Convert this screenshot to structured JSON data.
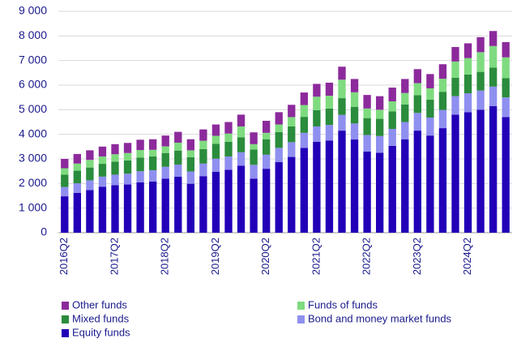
{
  "chart_data": {
    "type": "stacked_bar",
    "categories": [
      "2016Q2",
      null,
      null,
      null,
      "2017Q2",
      null,
      null,
      null,
      "2018Q2",
      null,
      null,
      null,
      "2019Q2",
      null,
      null,
      null,
      "2020Q2",
      null,
      null,
      null,
      "2021Q2",
      null,
      null,
      null,
      "2022Q2",
      null,
      null,
      null,
      "2023Q2",
      null,
      null,
      null,
      "2024Q2",
      null,
      null,
      null
    ],
    "series": [
      {
        "name": "Equity funds",
        "color": "#2200b8",
        "values": [
          1480,
          1620,
          1730,
          1870,
          1930,
          1960,
          2050,
          2080,
          2200,
          2280,
          1990,
          2300,
          2480,
          2560,
          2720,
          2200,
          2600,
          2870,
          3080,
          3450,
          3700,
          3750,
          4150,
          3790,
          3300,
          3250,
          3530,
          3800,
          4150,
          3950,
          4250,
          4800,
          4900,
          5000,
          5150,
          4700
        ]
      },
      {
        "name": "Bond and money market funds",
        "color": "#8f8ff0",
        "values": [
          380,
          390,
          400,
          410,
          430,
          440,
          450,
          460,
          480,
          490,
          500,
          510,
          530,
          540,
          550,
          560,
          570,
          580,
          600,
          610,
          620,
          630,
          640,
          650,
          670,
          680,
          690,
          700,
          720,
          730,
          740,
          750,
          770,
          780,
          790,
          800
        ]
      },
      {
        "name": "Mixed funds",
        "color": "#2a8c3c",
        "values": [
          500,
          510,
          520,
          520,
          530,
          540,
          550,
          560,
          560,
          570,
          580,
          590,
          600,
          600,
          610,
          620,
          630,
          640,
          640,
          650,
          660,
          670,
          680,
          680,
          690,
          700,
          710,
          710,
          720,
          730,
          740,
          750,
          760,
          760,
          770,
          780
        ]
      },
      {
        "name": "Funds of funds",
        "color": "#7fdb7f",
        "values": [
          260,
          290,
          310,
          300,
          300,
          300,
          310,
          270,
          270,
          320,
          280,
          340,
          330,
          330,
          440,
          220,
          260,
          310,
          380,
          480,
          550,
          520,
          750,
          590,
          390,
          370,
          410,
          470,
          490,
          460,
          530,
          660,
          670,
          800,
          880,
          850
        ]
      },
      {
        "name": "Other funds",
        "color": "#8c2a9c",
        "values": [
          380,
          390,
          390,
          400,
          410,
          410,
          420,
          430,
          440,
          440,
          450,
          460,
          460,
          470,
          480,
          480,
          490,
          500,
          500,
          510,
          520,
          530,
          530,
          540,
          550,
          550,
          560,
          570,
          570,
          580,
          590,
          590,
          600,
          610,
          610,
          620
        ]
      }
    ],
    "ylim": [
      0,
      9000
    ],
    "yticks": [
      0,
      {
        "value": 1000,
        "label": "1 000"
      },
      {
        "value": 2000,
        "label": "2 000"
      },
      {
        "value": 3000,
        "label": "3 000"
      },
      {
        "value": 4000,
        "label": "4 000"
      },
      {
        "value": 5000,
        "label": "5 000"
      },
      {
        "value": 6000,
        "label": "6 000"
      },
      {
        "value": 7000,
        "label": "7 000"
      },
      {
        "value": 8000,
        "label": "8 000"
      },
      {
        "value": 9000,
        "label": "9 000"
      }
    ],
    "grid": true
  }
}
